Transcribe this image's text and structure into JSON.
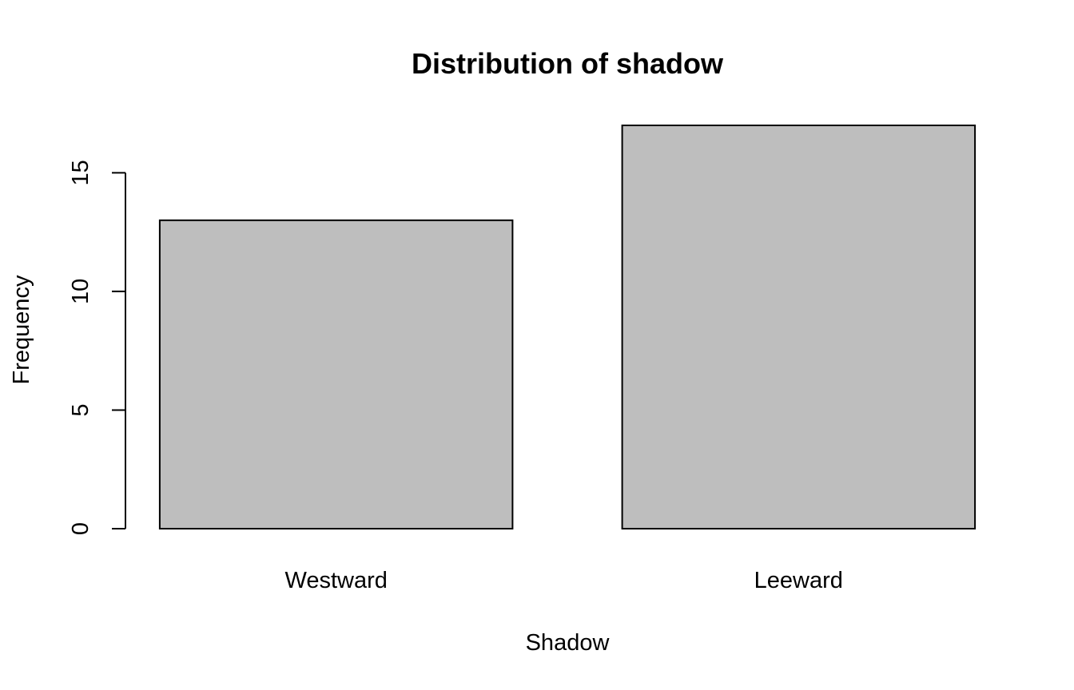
{
  "chart_data": {
    "type": "bar",
    "title": "Distribution of shadow",
    "xlabel": "Shadow",
    "ylabel": "Frequency",
    "categories": [
      "Westward",
      "Leeward"
    ],
    "values": [
      13,
      17
    ],
    "ylim": [
      0,
      17
    ],
    "yticks": [
      0,
      5,
      10,
      15
    ],
    "ytick_labels": [
      "0",
      "5",
      "10",
      "15"
    ],
    "bar_color": "#bebebe",
    "grid": false,
    "legend": "none"
  }
}
